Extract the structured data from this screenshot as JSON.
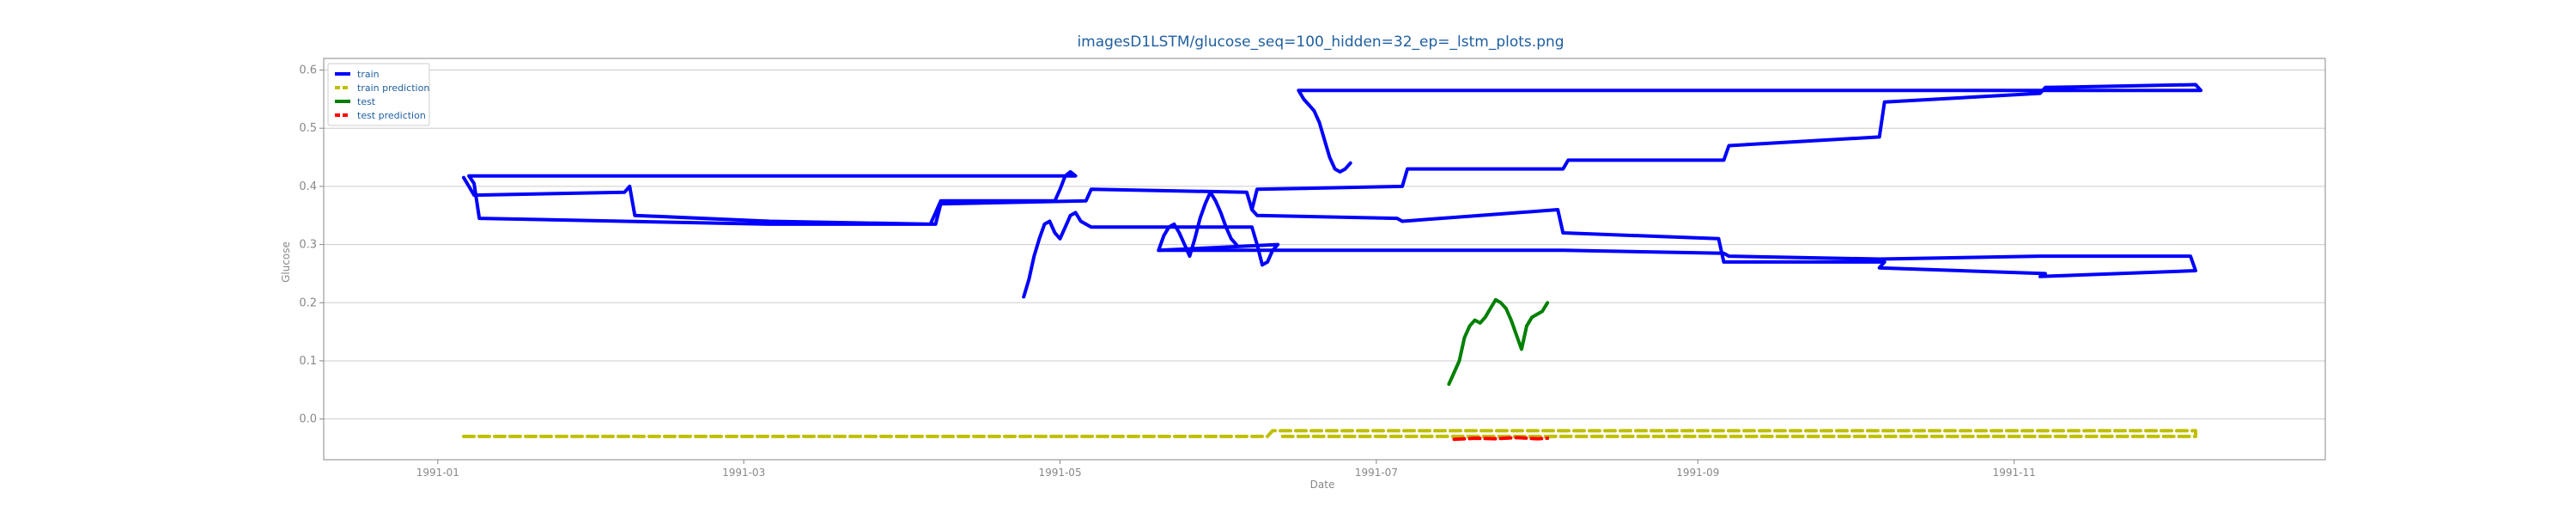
{
  "chart_data": {
    "type": "line",
    "title": "imagesD1LSTM/glucose_seq=100_hidden=32_ep=_lstm_plots.png",
    "xlabel": "Date",
    "ylabel": "Glucose",
    "x_ticks": [
      "1991-01",
      "1991-03",
      "1991-05",
      "1991-07",
      "1991-09",
      "1991-11"
    ],
    "y_ticks": [
      "0.0",
      "0.1",
      "0.2",
      "0.3",
      "0.4",
      "0.5",
      "0.6"
    ],
    "ylim": [
      -0.07,
      0.62
    ],
    "xlim": [
      "1990-12-10",
      "1991-12-31"
    ],
    "grid": "horizontal",
    "legend_position": "top-left",
    "colors": {
      "train": "#0000ff",
      "train prediction": "#bfbf00",
      "test": "#008000",
      "test prediction": "#ff0000",
      "title": "#1f5fa0",
      "axis_text": "#888888",
      "legend_text": "#1f5fa0"
    },
    "series": [
      {
        "name": "train",
        "style": "solid",
        "points": [
          [
            "1991-01-06",
            0.415
          ],
          [
            "1991-01-07",
            0.4
          ],
          [
            "1991-01-08",
            0.385
          ],
          [
            "1991-02-06",
            0.39
          ],
          [
            "1991-02-07",
            0.4
          ],
          [
            "1991-02-08",
            0.35
          ],
          [
            "1991-03-06",
            0.34
          ],
          [
            "1991-04-06",
            0.335
          ],
          [
            "1991-04-07",
            0.355
          ],
          [
            "1991-04-08",
            0.375
          ],
          [
            "1991-04-30",
            0.375
          ],
          [
            "1991-05-01",
            0.395
          ],
          [
            "1991-05-02",
            0.418
          ],
          [
            "1991-05-03",
            0.425
          ],
          [
            "1991-05-04",
            0.418
          ],
          [
            "1991-01-07",
            0.418
          ],
          [
            "1991-01-08",
            0.405
          ],
          [
            "1991-01-09",
            0.345
          ],
          [
            "1991-03-06",
            0.335
          ],
          [
            "1991-03-07",
            0.335
          ],
          [
            "1991-04-07",
            0.335
          ],
          [
            "1991-04-08",
            0.37
          ],
          [
            "1991-05-06",
            0.375
          ],
          [
            "1991-05-07",
            0.395
          ],
          [
            "1991-06-06",
            0.39
          ],
          [
            "1991-06-07",
            0.36
          ],
          [
            "1991-06-08",
            0.395
          ],
          [
            "1991-07-06",
            0.4
          ],
          [
            "1991-07-07",
            0.43
          ],
          [
            "1991-08-06",
            0.43
          ],
          [
            "1991-08-07",
            0.445
          ],
          [
            "1991-09-06",
            0.445
          ],
          [
            "1991-09-07",
            0.47
          ],
          [
            "1991-10-06",
            0.485
          ],
          [
            "1991-10-07",
            0.545
          ],
          [
            "1991-11-06",
            0.56
          ],
          [
            "1991-11-07",
            0.57
          ],
          [
            "1991-12-06",
            0.575
          ],
          [
            "1991-12-07",
            0.565
          ],
          [
            "1991-06-16",
            0.565
          ],
          [
            "1991-06-17",
            0.55
          ],
          [
            "1991-06-18",
            0.54
          ],
          [
            "1991-06-19",
            0.53
          ],
          [
            "1991-06-20",
            0.51
          ],
          [
            "1991-06-21",
            0.48
          ],
          [
            "1991-06-22",
            0.45
          ],
          [
            "1991-06-23",
            0.43
          ],
          [
            "1991-06-24",
            0.425
          ],
          [
            "1991-06-25",
            0.43
          ],
          [
            "1991-06-26",
            0.44
          ]
        ]
      },
      {
        "name": "train",
        "style": "solid",
        "points": [
          [
            "1991-04-24",
            0.21
          ],
          [
            "1991-04-25",
            0.24
          ],
          [
            "1991-04-26",
            0.28
          ],
          [
            "1991-04-27",
            0.31
          ],
          [
            "1991-04-28",
            0.335
          ],
          [
            "1991-04-29",
            0.34
          ],
          [
            "1991-04-30",
            0.32
          ],
          [
            "1991-05-01",
            0.31
          ],
          [
            "1991-05-02",
            0.33
          ],
          [
            "1991-05-03",
            0.35
          ],
          [
            "1991-05-04",
            0.355
          ],
          [
            "1991-05-05",
            0.34
          ],
          [
            "1991-05-06",
            0.335
          ],
          [
            "1991-05-07",
            0.33
          ],
          [
            "1991-06-07",
            0.33
          ],
          [
            "1991-06-08",
            0.3
          ],
          [
            "1991-06-09",
            0.265
          ],
          [
            "1991-06-10",
            0.27
          ],
          [
            "1991-06-11",
            0.29
          ],
          [
            "1991-06-12",
            0.3
          ],
          [
            "1991-05-20",
            0.29
          ],
          [
            "1991-05-21",
            0.315
          ],
          [
            "1991-05-22",
            0.33
          ],
          [
            "1991-05-23",
            0.335
          ],
          [
            "1991-05-24",
            0.32
          ],
          [
            "1991-05-25",
            0.3
          ],
          [
            "1991-05-26",
            0.28
          ],
          [
            "1991-05-27",
            0.31
          ],
          [
            "1991-05-28",
            0.345
          ],
          [
            "1991-05-29",
            0.37
          ],
          [
            "1991-05-30",
            0.39
          ],
          [
            "1991-05-31",
            0.375
          ],
          [
            "1991-06-01",
            0.355
          ],
          [
            "1991-06-02",
            0.33
          ],
          [
            "1991-06-03",
            0.31
          ],
          [
            "1991-06-04",
            0.3
          ]
        ]
      },
      {
        "name": "train",
        "style": "solid",
        "points": [
          [
            "1991-05-20",
            0.29
          ],
          [
            "1991-08-06",
            0.29
          ],
          [
            "1991-09-06",
            0.285
          ],
          [
            "1991-09-07",
            0.28
          ],
          [
            "1991-10-06",
            0.275
          ],
          [
            "1991-11-06",
            0.28
          ],
          [
            "1991-12-05",
            0.28
          ],
          [
            "1991-12-06",
            0.255
          ],
          [
            "1991-11-06",
            0.245
          ],
          [
            "1991-11-07",
            0.25
          ],
          [
            "1991-10-06",
            0.26
          ],
          [
            "1991-10-07",
            0.27
          ],
          [
            "1991-09-06",
            0.27
          ],
          [
            "1991-09-05",
            0.31
          ],
          [
            "1991-08-06",
            0.32
          ],
          [
            "1991-08-05",
            0.36
          ],
          [
            "1991-07-06",
            0.34
          ],
          [
            "1991-07-05",
            0.345
          ],
          [
            "1991-06-08",
            0.35
          ],
          [
            "1991-06-07",
            0.36
          ]
        ]
      },
      {
        "name": "train prediction",
        "style": "dashed",
        "points": [
          [
            "1991-01-06",
            -0.03
          ],
          [
            "1991-06-10",
            -0.03
          ],
          [
            "1991-06-11",
            -0.02
          ],
          [
            "1991-12-06",
            -0.02
          ],
          [
            "1991-12-06",
            -0.03
          ],
          [
            "1991-06-12",
            -0.03
          ]
        ]
      },
      {
        "name": "test",
        "style": "solid",
        "points": [
          [
            "1991-07-15",
            0.06
          ],
          [
            "1991-07-16",
            0.08
          ],
          [
            "1991-07-17",
            0.1
          ],
          [
            "1991-07-18",
            0.14
          ],
          [
            "1991-07-19",
            0.16
          ],
          [
            "1991-07-20",
            0.17
          ],
          [
            "1991-07-21",
            0.165
          ],
          [
            "1991-07-22",
            0.175
          ],
          [
            "1991-07-23",
            0.19
          ],
          [
            "1991-07-24",
            0.205
          ],
          [
            "1991-07-25",
            0.2
          ],
          [
            "1991-07-26",
            0.19
          ],
          [
            "1991-07-27",
            0.17
          ],
          [
            "1991-07-28",
            0.145
          ],
          [
            "1991-07-29",
            0.12
          ],
          [
            "1991-07-30",
            0.16
          ],
          [
            "1991-07-31",
            0.175
          ],
          [
            "1991-08-01",
            0.18
          ],
          [
            "1991-08-02",
            0.185
          ],
          [
            "1991-08-03",
            0.2
          ]
        ]
      },
      {
        "name": "test prediction",
        "style": "dashed",
        "points": [
          [
            "1991-07-16",
            -0.035
          ],
          [
            "1991-07-20",
            -0.033
          ],
          [
            "1991-07-24",
            -0.034
          ],
          [
            "1991-07-28",
            -0.032
          ],
          [
            "1991-08-01",
            -0.034
          ],
          [
            "1991-08-03",
            -0.033
          ]
        ]
      }
    ]
  }
}
